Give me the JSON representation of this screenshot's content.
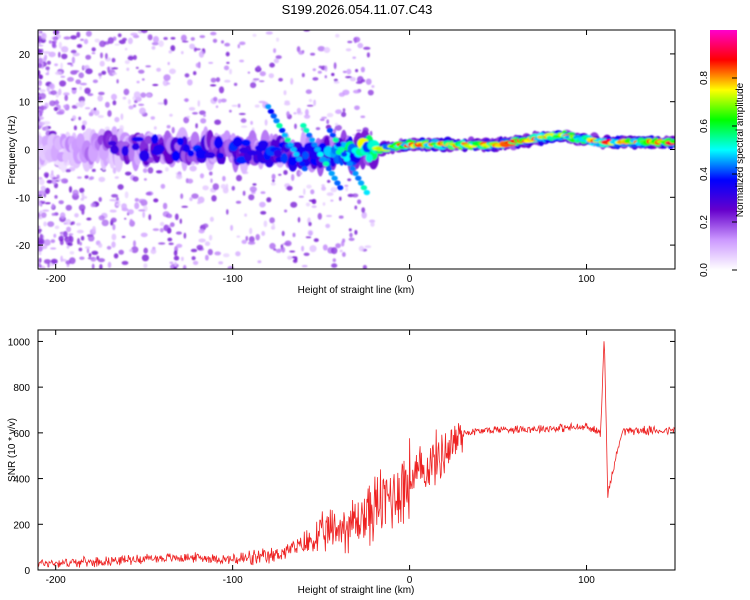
{
  "page": {
    "title": "S199.2026.054.11.07.C43"
  },
  "chart_data": [
    {
      "id": "spectrogram",
      "type": "heatmap",
      "xlabel": "Height of straight line (km)",
      "ylabel": "Frequency (Hz)",
      "xlim": [
        -210,
        150
      ],
      "ylim": [
        -25,
        25
      ],
      "xticks": [
        -200,
        -100,
        0,
        100
      ],
      "yticks": [
        -20,
        -10,
        0,
        10,
        20
      ],
      "colorbar": {
        "label": "Normalized spectral amplitude",
        "range": [
          0,
          1
        ],
        "ticks": [
          0.0,
          0.2,
          0.4,
          0.6,
          0.8
        ],
        "tick_labels": [
          "0.0",
          "0.2",
          "0.4",
          "0.6",
          "0.8"
        ],
        "colormap": [
          "#ffffff",
          "#cc99ff",
          "#6600cc",
          "#0000ff",
          "#00ffff",
          "#00ff00",
          "#ffff00",
          "#ff0000",
          "#ff00cc"
        ]
      },
      "ridge": [
        {
          "x": -200,
          "freq": 0,
          "amp": 0.15
        },
        {
          "x": -160,
          "freq": 0.3,
          "amp": 0.35
        },
        {
          "x": -120,
          "freq": 0.3,
          "amp": 0.4
        },
        {
          "x": -60,
          "freq": -1,
          "amp": 0.45
        },
        {
          "x": -20,
          "freq": 0,
          "amp": 0.8
        },
        {
          "x": 0,
          "freq": 1,
          "amp": 0.9
        },
        {
          "x": 50,
          "freq": 1,
          "amp": 0.9
        },
        {
          "x": 85,
          "freq": 3,
          "amp": 0.85
        },
        {
          "x": 110,
          "freq": 1.5,
          "amp": 0.9
        },
        {
          "x": 150,
          "freq": 1.5,
          "amp": 0.95
        }
      ]
    },
    {
      "id": "snr",
      "type": "line",
      "xlabel": "Height of straight line (km)",
      "ylabel": "SNR (10 * v/v)",
      "xlim": [
        -210,
        150
      ],
      "ylim": [
        0,
        1050
      ],
      "xticks": [
        -200,
        -100,
        0,
        100
      ],
      "yticks": [
        0,
        200,
        400,
        600,
        800,
        1000
      ],
      "color": "#ee2222",
      "series": [
        {
          "name": "SNR",
          "x": [
            -210,
            -180,
            -150,
            -120,
            -100,
            -80,
            -60,
            -45,
            -30,
            -20,
            -10,
            0,
            10,
            20,
            30,
            50,
            80,
            100,
            108,
            110,
            112,
            120,
            150
          ],
          "y": [
            30,
            35,
            50,
            55,
            45,
            55,
            110,
            170,
            210,
            270,
            330,
            390,
            450,
            520,
            600,
            615,
            620,
            625,
            600,
            1040,
            330,
            610,
            610
          ]
        }
      ]
    }
  ]
}
